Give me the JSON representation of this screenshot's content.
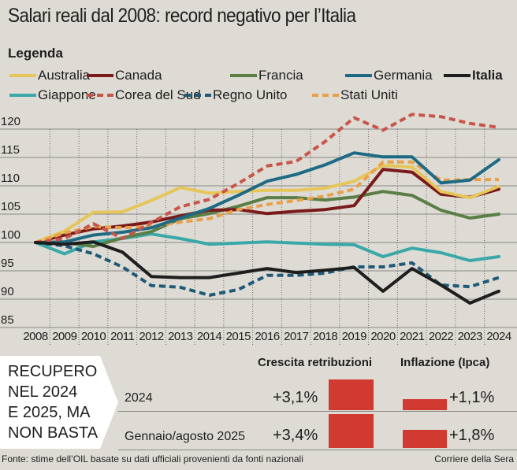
{
  "title": "Salari reali dal 2008: record negativo per l’Italia",
  "legend_title": "Legenda",
  "chart_data": {
    "type": "line",
    "title": "Salari reali dal 2008: record negativo per l’Italia",
    "xlabel": "",
    "ylabel": "",
    "x": [
      2008,
      2009,
      2010,
      2011,
      2012,
      2013,
      2014,
      2015,
      2016,
      2017,
      2018,
      2019,
      2020,
      2021,
      2022,
      2023,
      2024
    ],
    "x_tick_labels": [
      "2008",
      "2009",
      "2010",
      "2011",
      "2012",
      "2013",
      "2014",
      "2015",
      "2016",
      "2017",
      "2018",
      "2019",
      "2020",
      "2021",
      "2022",
      "2023",
      "2024"
    ],
    "ylim": [
      85,
      120
    ],
    "y_ticks": [
      85,
      90,
      95,
      100,
      105,
      110,
      115,
      120
    ],
    "grid": true,
    "legend_position": "top",
    "series": [
      {
        "name": "Australia",
        "color": "#e6c65a",
        "style": "solid",
        "values": [
          100,
          102,
          105.3,
          105.4,
          107.4,
          109.7,
          108.7,
          109,
          109.2,
          109.2,
          109.6,
          110.8,
          113.6,
          113.3,
          109,
          107.9,
          109.9
        ]
      },
      {
        "name": "Canada",
        "color": "#7a1a1a",
        "style": "solid",
        "values": [
          100,
          101.3,
          102.4,
          102.9,
          103.6,
          104.7,
          105.7,
          105.8,
          105.1,
          105.5,
          105.8,
          106.5,
          112.9,
          112.4,
          108.5,
          108,
          109.4
        ]
      },
      {
        "name": "Francia",
        "color": "#5a7e45",
        "style": "solid",
        "values": [
          100,
          100,
          99.3,
          100.8,
          101.9,
          104.2,
          105.1,
          106.4,
          107.9,
          107.9,
          107.5,
          108,
          109,
          108.3,
          105.7,
          104.3,
          105
        ]
      },
      {
        "name": "Germania",
        "color": "#1e6a84",
        "style": "solid",
        "values": [
          100,
          100.1,
          101.3,
          101.8,
          102.6,
          104.3,
          106,
          108.3,
          110.8,
          112,
          113.7,
          115.8,
          115.1,
          115.1,
          110.5,
          111,
          114.6
        ]
      },
      {
        "name": "Italia",
        "color": "#1e1e1e",
        "style": "solid",
        "bold": true,
        "values": [
          100,
          99.7,
          100.1,
          98.3,
          94,
          93.8,
          93.8,
          94.6,
          95.4,
          94.7,
          95.1,
          95.6,
          91.4,
          95.4,
          92.5,
          89.3,
          91.4
        ]
      },
      {
        "name": "Giappone",
        "color": "#3aa8a8",
        "style": "solid",
        "values": [
          100,
          98,
          100.1,
          100.7,
          101.5,
          100.7,
          99.7,
          99.9,
          100.1,
          99.9,
          99.7,
          99.6,
          97.5,
          99,
          98.2,
          96.8,
          97.5
        ]
      },
      {
        "name": "Corea del Sud",
        "color": "#c8554a",
        "style": "dashed",
        "values": [
          100,
          100.7,
          103.3,
          100.7,
          103.5,
          106.3,
          107.6,
          110.4,
          113.5,
          114.3,
          117.8,
          122,
          119.8,
          122.6,
          122.2,
          121,
          120.3
        ]
      },
      {
        "name": "Regno Unito",
        "color": "#1e5a78",
        "style": "dashed",
        "values": [
          100,
          99.4,
          98,
          95.7,
          92.4,
          92.1,
          90.7,
          91.7,
          94.2,
          94.2,
          94.6,
          95.7,
          95.7,
          96.4,
          92.5,
          92.2,
          93.8
        ]
      },
      {
        "name": "Stati Uniti",
        "color": "#e8a04a",
        "style": "dashed",
        "values": [
          100,
          101.7,
          102.8,
          102.6,
          102.8,
          103.6,
          104.2,
          105.8,
          106.7,
          107.4,
          108.2,
          109.4,
          114.2,
          114.2,
          111,
          111.1,
          111.1
        ]
      }
    ],
    "table": {
      "headline": [
        "RECUPERO",
        "NEL 2024",
        "E 2025, MA",
        "NON BASTA"
      ],
      "columns": [
        "Crescita retribuzioni",
        "Inflazione (Ipca)"
      ],
      "rows": [
        {
          "label": "2024",
          "crescita": 3.1,
          "crescita_label": "+3,1%",
          "inflazione": 1.1,
          "inflazione_label": "+1,1%"
        },
        {
          "label": "Gennaio/agosto 2025",
          "crescita": 3.4,
          "crescita_label": "+3,4%",
          "inflazione": 1.8,
          "inflazione_label": "+1,8%"
        }
      ],
      "bar_color": "#d03a30"
    }
  },
  "footer": {
    "source": "Fonte: stime dell’OIL basate su dati ufficiali provenienti da fonti nazionali",
    "credit": "Corriere della Sera"
  }
}
